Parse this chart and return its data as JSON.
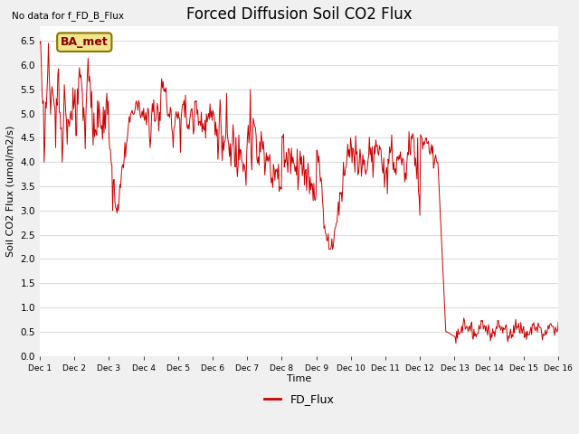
{
  "title": "Forced Diffusion Soil CO2 Flux",
  "no_data_text": "No data for f_FD_B_Flux",
  "ba_met_label": "BA_met",
  "ylabel": "Soil CO2 Flux (umol/m2/s)",
  "xlabel": "Time",
  "ylim": [
    0.0,
    6.8
  ],
  "yticks": [
    0.0,
    0.5,
    1.0,
    1.5,
    2.0,
    2.5,
    3.0,
    3.5,
    4.0,
    4.5,
    5.0,
    5.5,
    6.0,
    6.5
  ],
  "line_color": "#cc0000",
  "legend_label": "FD_Flux",
  "fig_bg_color": "#f0f0f0",
  "plot_bg_color": "#ffffff",
  "grid_color": "#dddddd",
  "title_fontsize": 12,
  "label_fontsize": 8,
  "tick_fontsize": 7.5
}
